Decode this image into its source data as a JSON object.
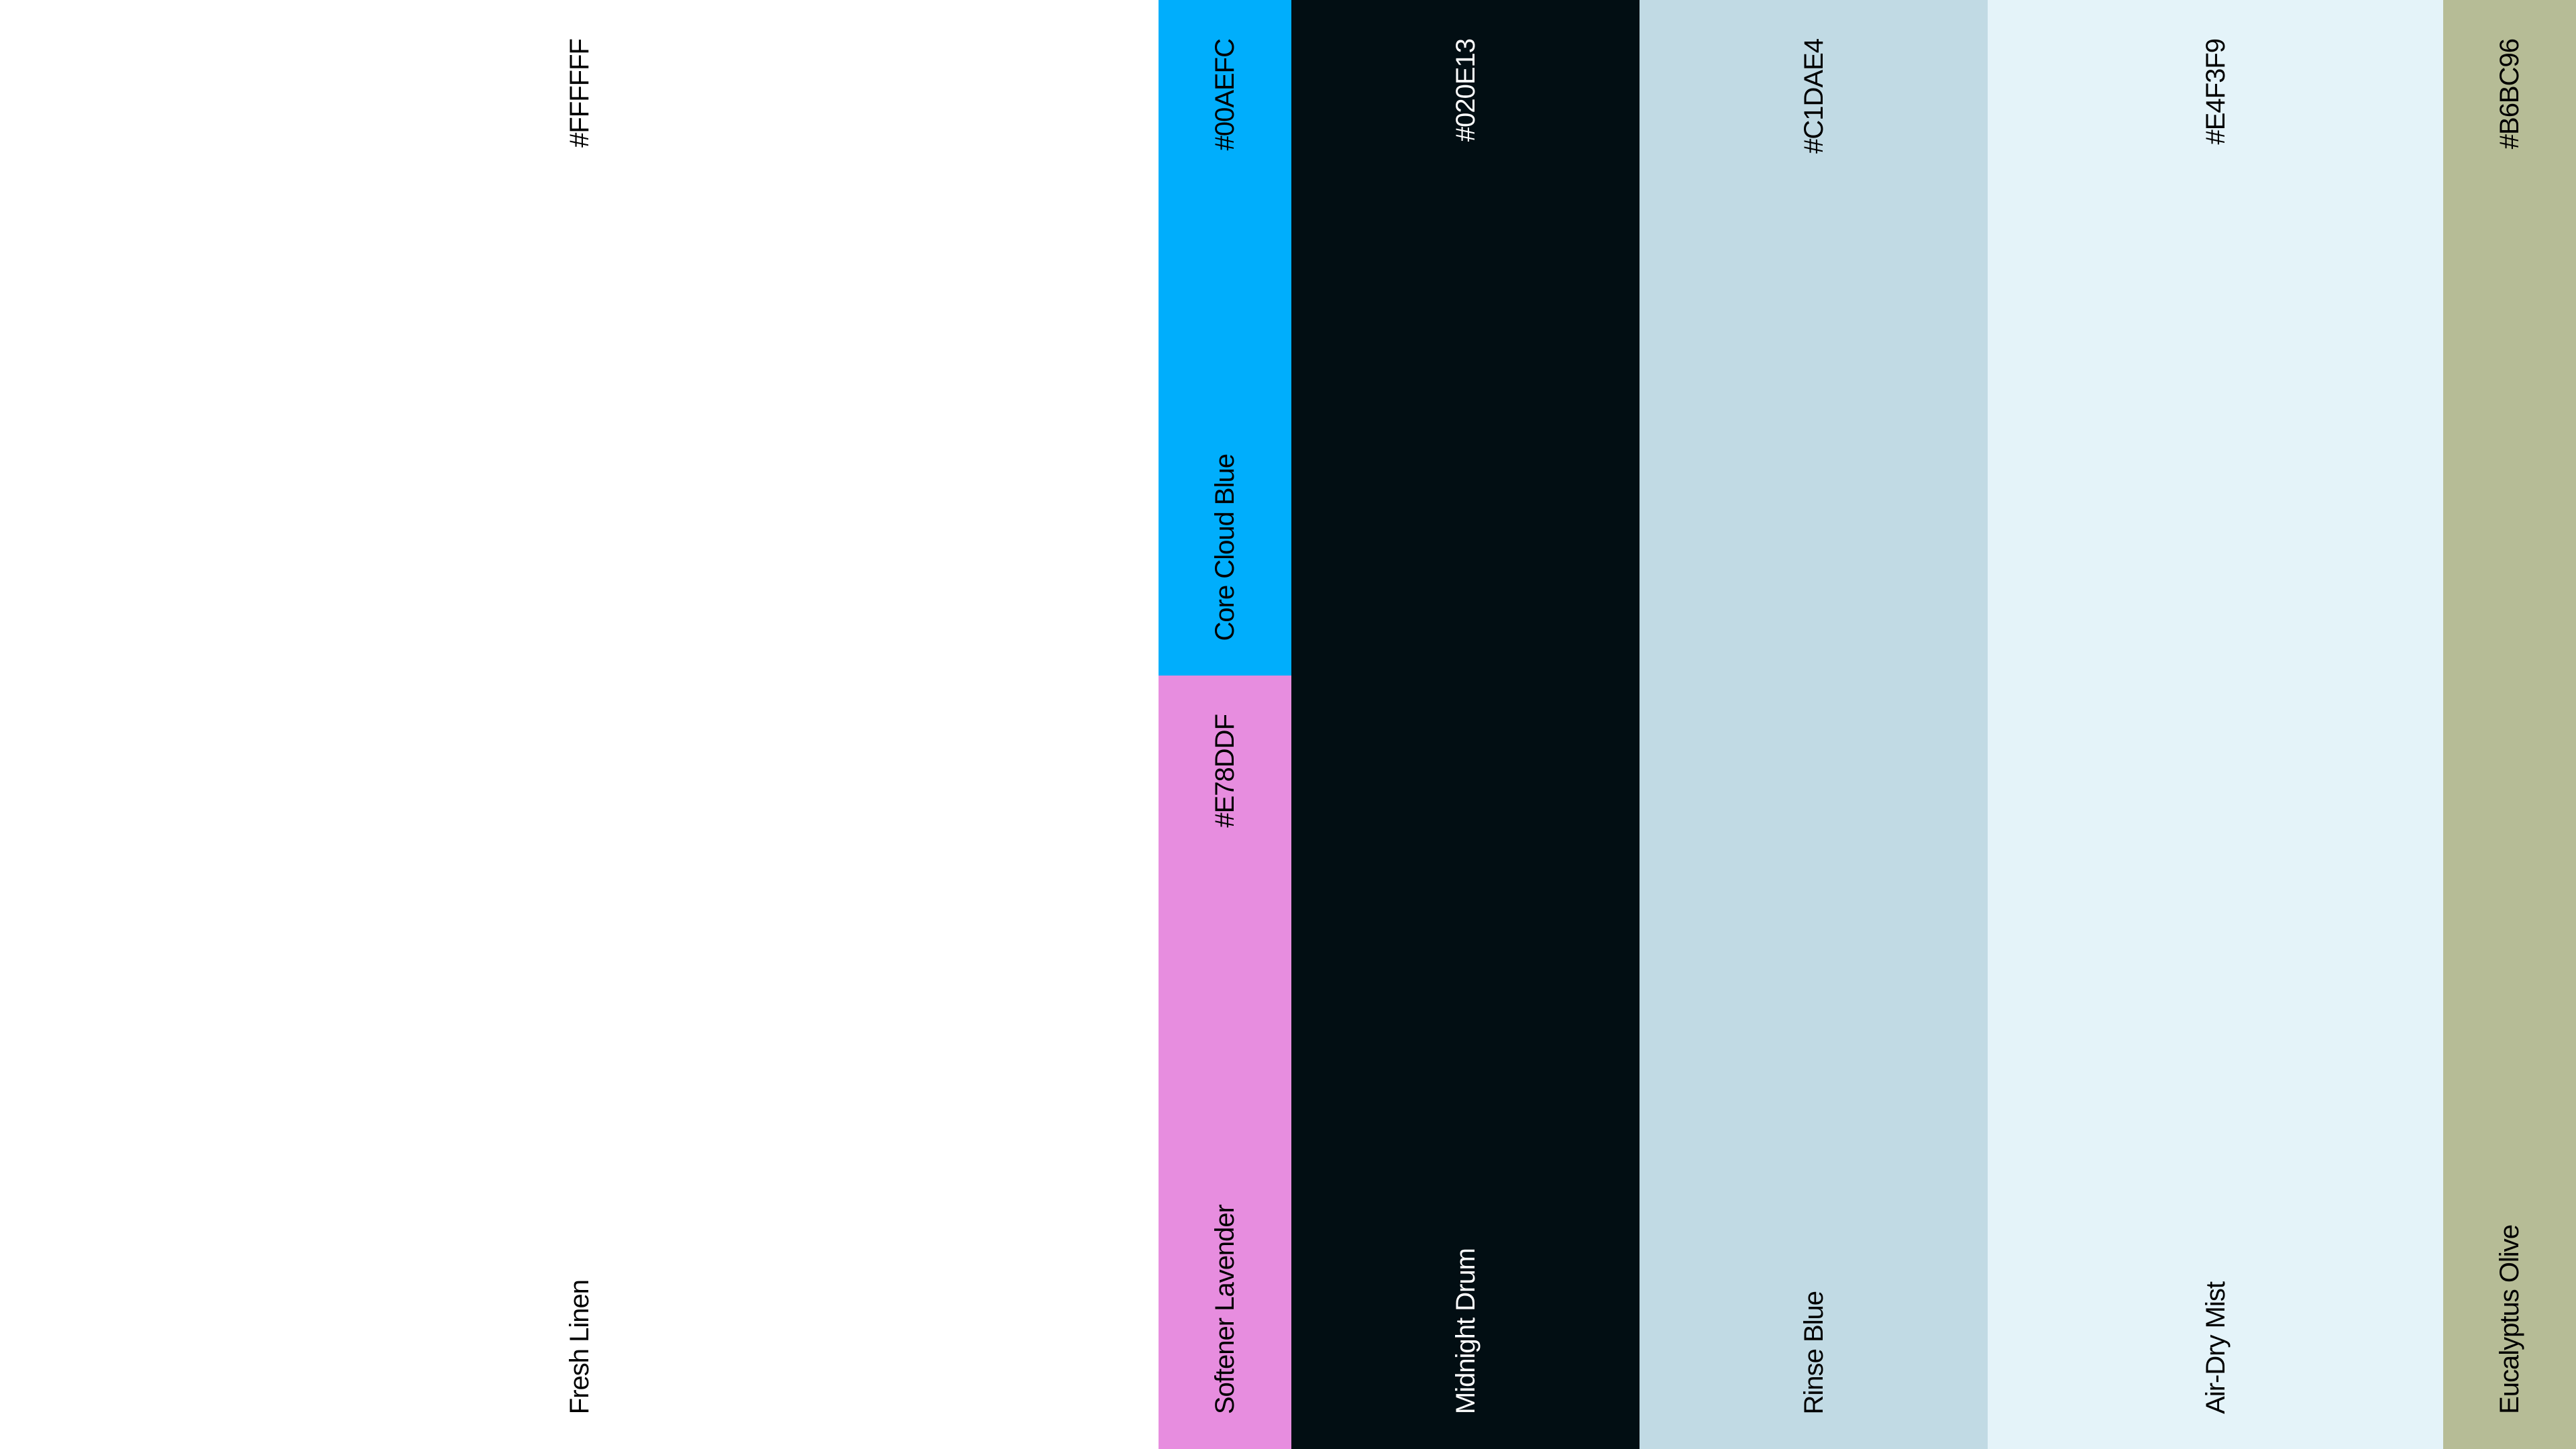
{
  "swatches": [
    {
      "name": "Fresh Linen",
      "hex": "#FFFFFF",
      "color": "#FFFFFF",
      "text_color": "#000000"
    },
    {
      "name": "Core Cloud Blue",
      "hex": "#00AEFC",
      "color": "#00AEFC",
      "text_color": "#000000"
    },
    {
      "name": "Softener Lavender",
      "hex": "#E78DDF",
      "color": "#E78DDF",
      "text_color": "#000000"
    },
    {
      "name": "Midnight Drum",
      "hex": "#020E13",
      "color": "#020E13",
      "text_color": "#FFFFFF"
    },
    {
      "name": "Rinse Blue",
      "hex": "#C1DAE4",
      "color": "#C1DAE4",
      "text_color": "#000000"
    },
    {
      "name": "Air-Dry Mist",
      "hex": "#E4F3F9",
      "color": "#E4F3F9",
      "text_color": "#000000"
    },
    {
      "name": "Eucalyptus Olive",
      "hex": "#B6BC96",
      "color": "#B6BC96",
      "text_color": "#000000"
    }
  ]
}
